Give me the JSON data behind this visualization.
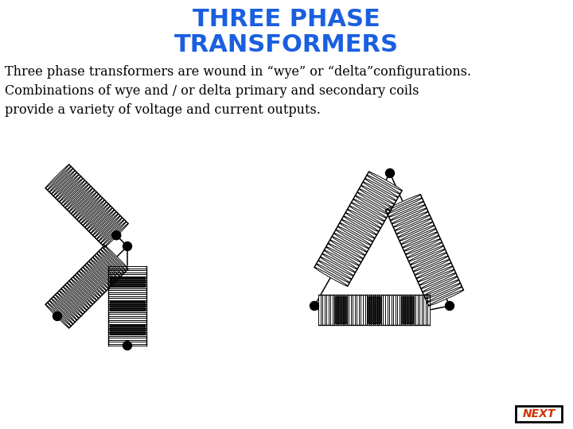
{
  "title_line1": "THREE PHASE",
  "title_line2": "TRANSFORMERS",
  "title_color": "#1a5fe0",
  "title_fontsize": 22,
  "body_text": "Three phase transformers are wound in “wye” or “delta”configurations.\nCombinations of wye and / or delta primary and secondary coils\nprovide a variety of voltage and current outputs.",
  "body_fontsize": 11.5,
  "next_text": "NEXT",
  "next_color": "#cc3300",
  "background_color": "#ffffff",
  "coil_color": "#000000",
  "dot_color": "#000000",
  "line_color": "#000000"
}
